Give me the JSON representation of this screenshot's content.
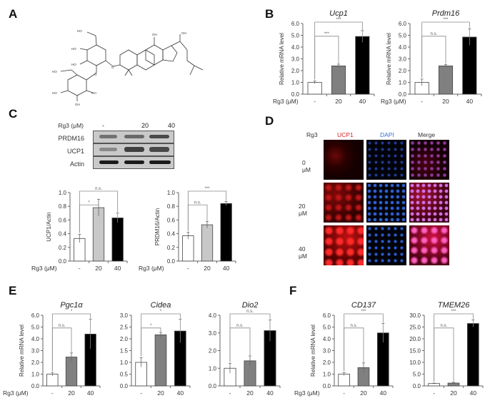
{
  "panels": {
    "A": {
      "label": "A",
      "description": "Chemical structure of ginsenoside Rg3",
      "atoms": [
        "HO",
        "HO",
        "HO",
        "HO",
        "HO",
        "HO",
        "OH",
        "OH",
        "OH",
        "OH",
        "O",
        "O",
        "O"
      ]
    },
    "B": {
      "label": "B"
    },
    "C": {
      "label": "C",
      "western_blot": {
        "treatment_label": "Rg3 (μM)",
        "lanes": [
          "-",
          "20",
          "40"
        ],
        "rows": [
          {
            "name": "PRDM16",
            "intensity": [
              0.45,
              0.55,
              0.75
            ]
          },
          {
            "name": "UCP1",
            "intensity": [
              0.45,
              0.8,
              0.75
            ]
          },
          {
            "name": "Actin",
            "intensity": [
              0.95,
              0.95,
              0.95
            ]
          }
        ]
      }
    },
    "D": {
      "label": "D",
      "treatment_label": "Rg3",
      "columns": [
        "UCP1",
        "DAPI",
        "Merge"
      ],
      "column_colors": [
        "#e02020",
        "#3070d0",
        "#333333"
      ],
      "rows": [
        "0 μM",
        "20 μM",
        "40 μM"
      ]
    },
    "E": {
      "label": "E"
    },
    "F": {
      "label": "F"
    }
  },
  "common": {
    "x_axis_label": "Rg3 (μM)",
    "categories": [
      "-",
      "20",
      "40"
    ],
    "bar_colors": [
      "#ffffff",
      "#808080",
      "#000000"
    ]
  },
  "chart_data": [
    {
      "id": "B-Ucp1",
      "type": "bar",
      "title": "Ucp1",
      "ylabel": "Relative mRNA level",
      "xlabel": "Rg3 (μM)",
      "categories": [
        "-",
        "20",
        "40"
      ],
      "values": [
        1.0,
        2.4,
        4.9
      ],
      "errors": [
        0.12,
        0.15,
        0.5
      ],
      "ylim": [
        0,
        6
      ],
      "yticks": [
        "0.0",
        "1.0",
        "2.0",
        "3.0",
        "4.0",
        "5.0",
        "6.0"
      ],
      "significance": [
        {
          "pair": [
            "-",
            "20"
          ],
          "label": "***"
        },
        {
          "pair": [
            "-",
            "40"
          ],
          "label": "***"
        }
      ],
      "bar_colors": [
        "#ffffff",
        "#808080",
        "#000000"
      ]
    },
    {
      "id": "B-Prdm16",
      "type": "bar",
      "title": "Prdm16",
      "ylabel": "Relative mRNA level",
      "xlabel": "Rg3 (μM)",
      "categories": [
        "-",
        "20",
        "40"
      ],
      "values": [
        1.0,
        2.4,
        4.85
      ],
      "errors": [
        0.28,
        0.12,
        0.7
      ],
      "ylim": [
        0,
        6
      ],
      "yticks": [
        "0.0",
        "1.0",
        "2.0",
        "3.0",
        "4.0",
        "5.0",
        "6.0"
      ],
      "significance": [
        {
          "pair": [
            "-",
            "20"
          ],
          "label": "n.s."
        },
        {
          "pair": [
            "-",
            "40"
          ],
          "label": "***"
        }
      ],
      "bar_colors": [
        "#ffffff",
        "#808080",
        "#000000"
      ]
    },
    {
      "id": "C-UCP1",
      "type": "bar",
      "title": "",
      "ylabel": "UCP1/Actin",
      "xlabel": "Rg3 (μM)",
      "categories": [
        "-",
        "20",
        "40"
      ],
      "values": [
        0.33,
        0.78,
        0.63
      ],
      "errors": [
        0.06,
        0.12,
        0.07
      ],
      "ylim": [
        0,
        1.0
      ],
      "yticks": [
        "0.0",
        "0.2",
        "0.4",
        "0.6",
        "0.8",
        "1.0"
      ],
      "significance": [
        {
          "pair": [
            "-",
            "20"
          ],
          "label": "*"
        },
        {
          "pair": [
            "-",
            "40"
          ],
          "label": "n.s."
        }
      ],
      "bar_colors": [
        "#ffffff",
        "#c8c8c8",
        "#000000"
      ]
    },
    {
      "id": "C-PRDM16",
      "type": "bar",
      "title": "",
      "ylabel": "PRDM16/Actin",
      "xlabel": "Rg3 (μM)",
      "categories": [
        "-",
        "20",
        "40"
      ],
      "values": [
        0.37,
        0.53,
        0.84
      ],
      "errors": [
        0.05,
        0.05,
        0.03
      ],
      "ylim": [
        0,
        1.0
      ],
      "yticks": [
        "0.0",
        "0.2",
        "0.4",
        "0.6",
        "0.8",
        "1.0"
      ],
      "significance": [
        {
          "pair": [
            "-",
            "20"
          ],
          "label": "n.s."
        },
        {
          "pair": [
            "-",
            "40"
          ],
          "label": "***"
        }
      ],
      "bar_colors": [
        "#ffffff",
        "#c8c8c8",
        "#000000"
      ]
    },
    {
      "id": "E-Pgc1a",
      "type": "bar",
      "title": "Pgc1α",
      "ylabel": "Relative mRNA level",
      "xlabel": "Rg3 (μM)",
      "categories": [
        "-",
        "20",
        "40"
      ],
      "values": [
        1.0,
        2.45,
        4.4
      ],
      "errors": [
        0.15,
        0.35,
        1.25
      ],
      "ylim": [
        0,
        6
      ],
      "yticks": [
        "0.0",
        "1.0",
        "2.0",
        "3.0",
        "4.0",
        "5.0",
        "6.0"
      ],
      "significance": [
        {
          "pair": [
            "-",
            "20"
          ],
          "label": "n.s."
        },
        {
          "pair": [
            "-",
            "40"
          ],
          "label": "*"
        }
      ],
      "bar_colors": [
        "#ffffff",
        "#808080",
        "#000000"
      ]
    },
    {
      "id": "E-Cidea",
      "type": "bar",
      "title": "Cidea",
      "ylabel": "",
      "xlabel": "",
      "categories": [
        "-",
        "20",
        "40"
      ],
      "values": [
        1.0,
        2.17,
        2.33
      ],
      "errors": [
        0.2,
        0.1,
        0.5
      ],
      "ylim": [
        0,
        3
      ],
      "yticks": [
        "0.0",
        "0.5",
        "1.0",
        "1.5",
        "2.0",
        "2.5",
        "3.0"
      ],
      "significance": [
        {
          "pair": [
            "-",
            "20"
          ],
          "label": "*"
        },
        {
          "pair": [
            "-",
            "40"
          ],
          "label": "*"
        }
      ],
      "bar_colors": [
        "#ffffff",
        "#808080",
        "#000000"
      ]
    },
    {
      "id": "E-Dio2",
      "type": "bar",
      "title": "Dio2",
      "ylabel": "",
      "xlabel": "",
      "categories": [
        "-",
        "20",
        "40"
      ],
      "values": [
        1.0,
        1.42,
        3.13
      ],
      "errors": [
        0.28,
        0.28,
        0.6
      ],
      "ylim": [
        0,
        4
      ],
      "yticks": [
        "0.0",
        "1.0",
        "2.0",
        "3.0",
        "4.0"
      ],
      "significance": [
        {
          "pair": [
            "-",
            "20"
          ],
          "label": "n.s."
        },
        {
          "pair": [
            "-",
            "40"
          ],
          "label": "n.s."
        }
      ],
      "bar_colors": [
        "#ffffff",
        "#808080",
        "#000000"
      ]
    },
    {
      "id": "F-CD137",
      "type": "bar",
      "title": "CD137",
      "ylabel": "Relative mRNA level",
      "xlabel": "Rg3 (μM)",
      "categories": [
        "-",
        "20",
        "40"
      ],
      "values": [
        1.0,
        1.55,
        4.5
      ],
      "errors": [
        0.12,
        0.4,
        0.8
      ],
      "ylim": [
        0,
        6
      ],
      "yticks": [
        "0.0",
        "1.0",
        "2.0",
        "3.0",
        "4.0",
        "5.0",
        "6.0"
      ],
      "significance": [
        {
          "pair": [
            "-",
            "20"
          ],
          "label": "n.s."
        },
        {
          "pair": [
            "-",
            "40"
          ],
          "label": "***"
        }
      ],
      "bar_colors": [
        "#ffffff",
        "#808080",
        "#000000"
      ]
    },
    {
      "id": "F-TMEM26",
      "type": "bar",
      "title": "TMEM26",
      "ylabel": "",
      "xlabel": "",
      "categories": [
        "-",
        "20",
        "40"
      ],
      "values": [
        1.0,
        1.2,
        26.5
      ],
      "errors": [
        0.2,
        0.3,
        1.5
      ],
      "ylim": [
        0,
        30
      ],
      "yticks": [
        "0.0",
        "5.0",
        "10.0",
        "15.0",
        "20.0",
        "25.0",
        "30.0"
      ],
      "significance": [
        {
          "pair": [
            "-",
            "20"
          ],
          "label": "n.s."
        },
        {
          "pair": [
            "-",
            "40"
          ],
          "label": "***"
        }
      ],
      "bar_colors": [
        "#ffffff",
        "#808080",
        "#000000"
      ]
    }
  ]
}
